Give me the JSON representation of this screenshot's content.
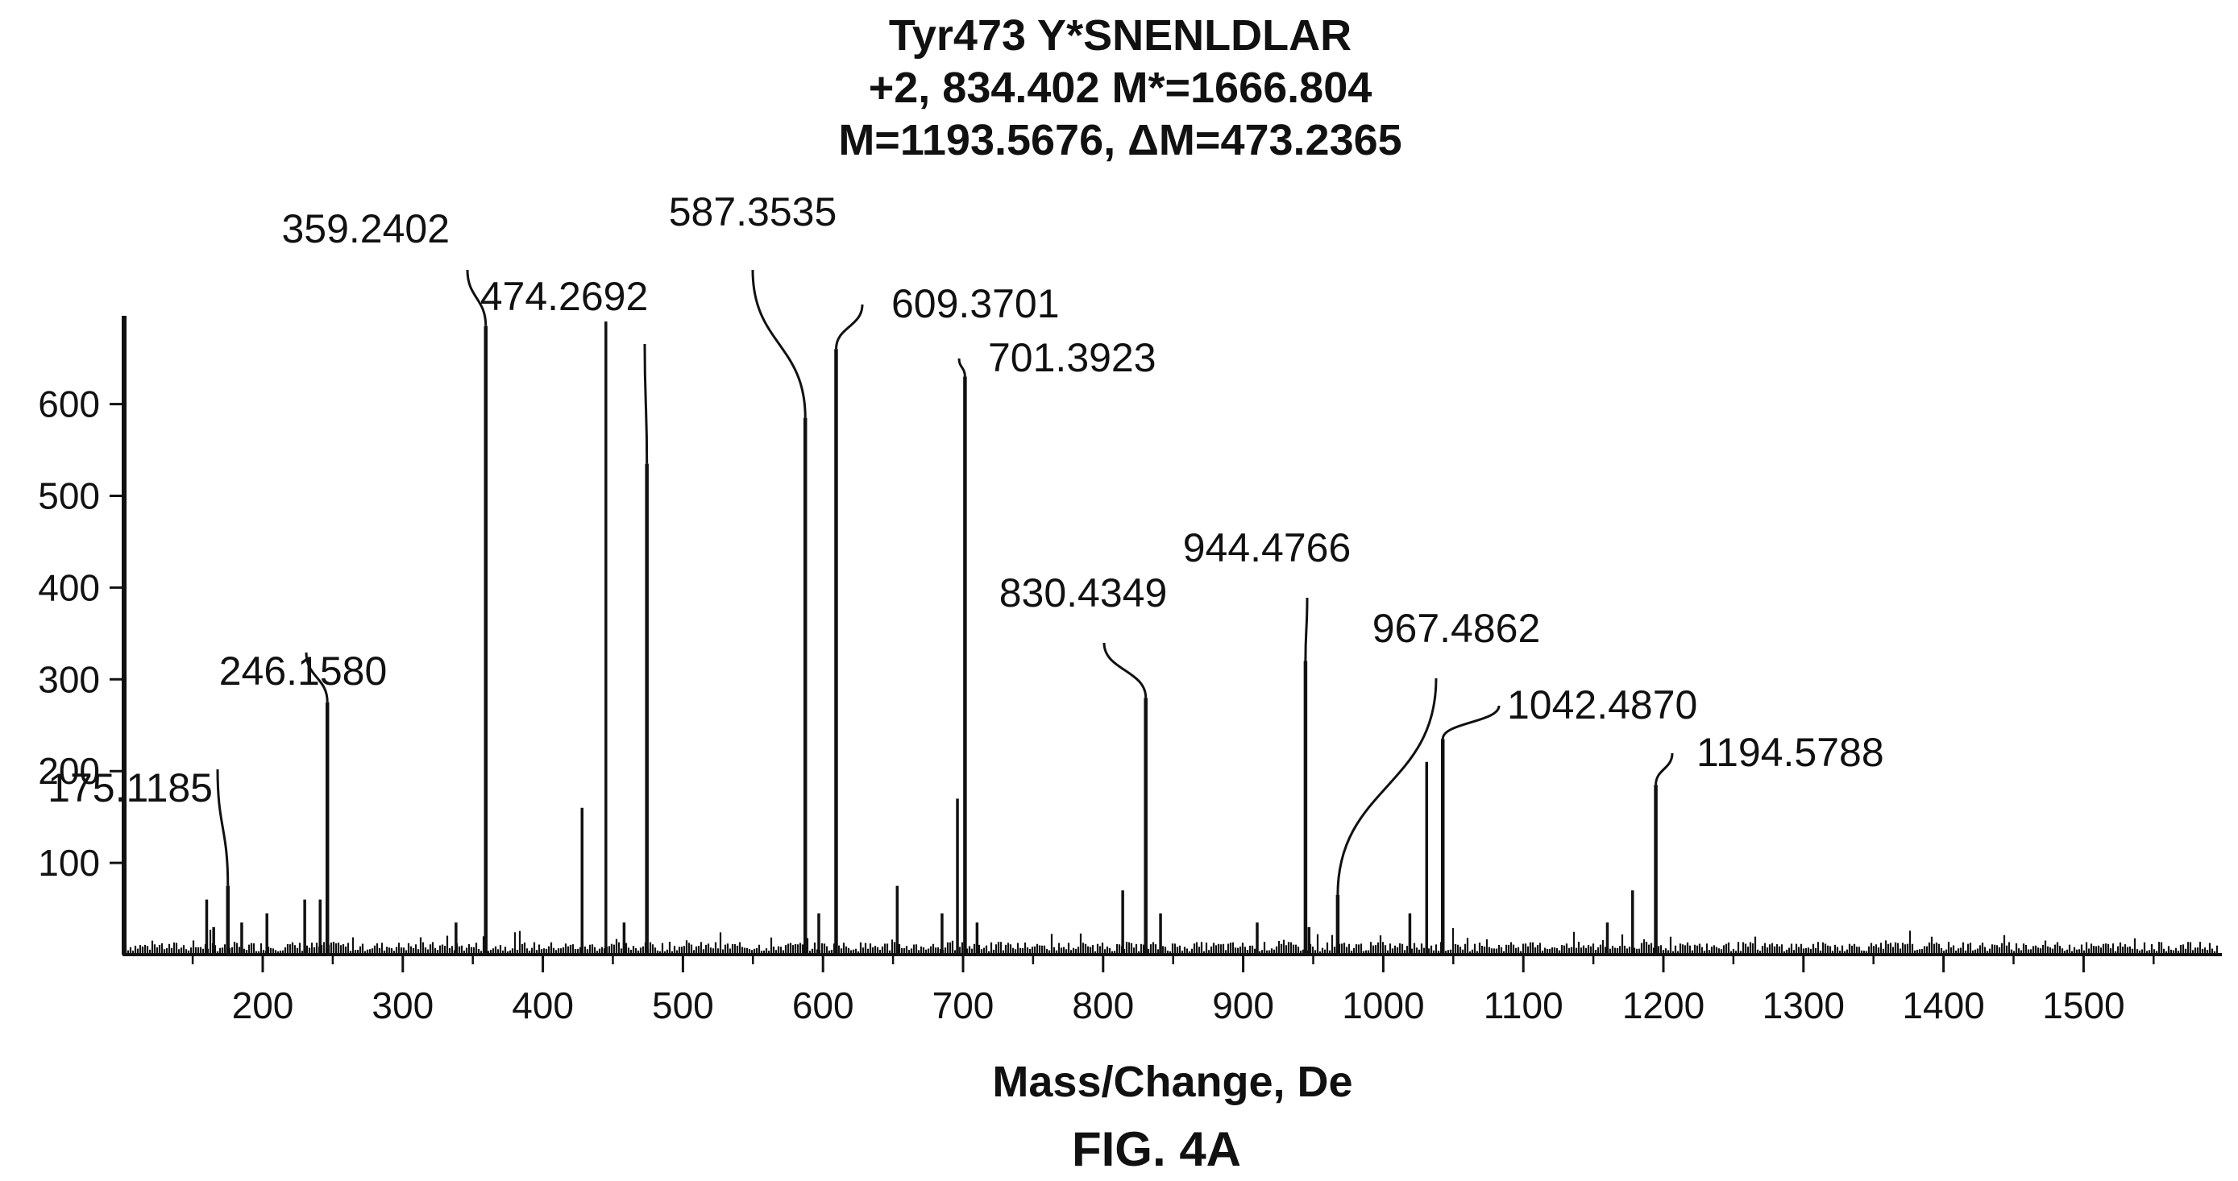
{
  "figure_label": "FIG. 4A",
  "chart_data": {
    "type": "bar",
    "title": [
      "Tyr473 Y*SNENLDLAR",
      "+2, 834.402 M*=1666.804",
      "M=1193.5676,  ΔM=473.2365"
    ],
    "xlabel": "Mass/Change, De",
    "ylabel": "",
    "xlim": [
      100,
      1600
    ],
    "ylim": [
      0,
      690
    ],
    "x_ticks": [
      200,
      300,
      400,
      500,
      600,
      700,
      800,
      900,
      1000,
      1100,
      1200,
      1300,
      1400,
      1500
    ],
    "y_ticks": [
      100,
      200,
      300,
      400,
      500,
      600
    ],
    "grid": false,
    "peaks": [
      {
        "mz": 175.1185,
        "intensity": 75,
        "label": "175.1185"
      },
      {
        "mz": 246.158,
        "intensity": 275,
        "label": "246.1580"
      },
      {
        "mz": 359.2402,
        "intensity": 685,
        "label": "359.2402"
      },
      {
        "mz": 474.2692,
        "intensity": 535,
        "label": "474.2692"
      },
      {
        "mz": 587.3535,
        "intensity": 585,
        "label": "587.3535"
      },
      {
        "mz": 609.3701,
        "intensity": 660,
        "label": "609.3701"
      },
      {
        "mz": 701.3923,
        "intensity": 630,
        "label": "701.3923"
      },
      {
        "mz": 830.4349,
        "intensity": 280,
        "label": "830.4349"
      },
      {
        "mz": 944.4766,
        "intensity": 320,
        "label": "944.4766"
      },
      {
        "mz": 967.4862,
        "intensity": 65,
        "label": "967.4862"
      },
      {
        "mz": 1042.487,
        "intensity": 235,
        "label": "1042.4870"
      },
      {
        "mz": 1194.5788,
        "intensity": 185,
        "label": "1194.5788"
      }
    ],
    "minor_peaks": [
      {
        "mz": 160,
        "intensity": 60
      },
      {
        "mz": 165,
        "intensity": 30
      },
      {
        "mz": 185,
        "intensity": 35
      },
      {
        "mz": 203,
        "intensity": 45
      },
      {
        "mz": 230,
        "intensity": 60
      },
      {
        "mz": 241,
        "intensity": 60
      },
      {
        "mz": 338,
        "intensity": 35
      },
      {
        "mz": 428,
        "intensity": 160
      },
      {
        "mz": 445,
        "intensity": 690
      },
      {
        "mz": 458,
        "intensity": 35
      },
      {
        "mz": 597,
        "intensity": 45
      },
      {
        "mz": 653,
        "intensity": 75
      },
      {
        "mz": 685,
        "intensity": 45
      },
      {
        "mz": 696,
        "intensity": 170
      },
      {
        "mz": 710,
        "intensity": 35
      },
      {
        "mz": 814,
        "intensity": 70
      },
      {
        "mz": 841,
        "intensity": 45
      },
      {
        "mz": 910,
        "intensity": 35
      },
      {
        "mz": 947,
        "intensity": 30
      },
      {
        "mz": 1019,
        "intensity": 45
      },
      {
        "mz": 1031,
        "intensity": 210
      },
      {
        "mz": 1160,
        "intensity": 35
      },
      {
        "mz": 1178,
        "intensity": 70
      }
    ]
  }
}
